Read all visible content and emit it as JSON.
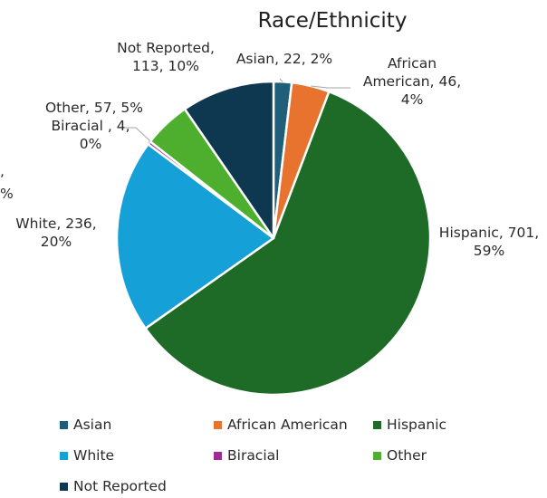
{
  "chart_data": {
    "type": "pie",
    "title": "Race/Ethnicity",
    "slices": [
      {
        "name": "Asian",
        "value": 22,
        "percent": "2%",
        "label_lines": [
          "Asian, 22, 2%"
        ],
        "color": "#1f5f7a"
      },
      {
        "name": "African American",
        "value": 46,
        "percent": "4%",
        "label_lines": [
          "African",
          "American, 46,",
          "4%"
        ],
        "color": "#e8732e"
      },
      {
        "name": "Hispanic",
        "value": 701,
        "percent": "59%",
        "label_lines": [
          "Hispanic, 701,",
          "59%"
        ],
        "color": "#1e6b27"
      },
      {
        "name": "White",
        "value": 236,
        "percent": "20%",
        "label_lines": [
          "White, 236,",
          "20%"
        ],
        "color": "#16a0d8"
      },
      {
        "name": "Biracial",
        "value": 4,
        "percent": "0%",
        "label_lines": [
          "Biracial , 4,",
          "0%"
        ],
        "color": "#a02b93"
      },
      {
        "name": "Other",
        "value": 57,
        "percent": "5%",
        "label_lines": [
          "Other, 57, 5%"
        ],
        "color": "#4eaf2f"
      },
      {
        "name": "Not Reported",
        "value": 113,
        "percent": "10%",
        "label_lines": [
          "Not Reported,",
          "113, 10%"
        ],
        "color": "#0e3750"
      }
    ],
    "clipped_label_fragments": [
      ",",
      "%"
    ],
    "legend": {
      "placement": "bottom",
      "entries": [
        "Asian",
        "African American",
        "Hispanic",
        "White",
        "Biracial",
        "Other",
        "Not Reported"
      ]
    }
  }
}
